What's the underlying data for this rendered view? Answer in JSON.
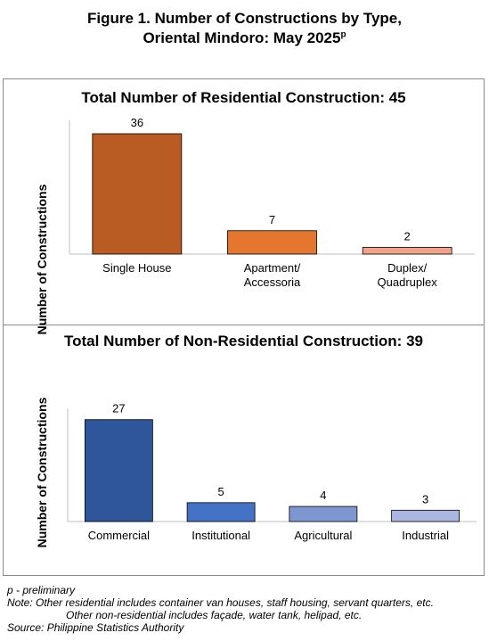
{
  "figure": {
    "title_line1": "Figure 1. Number of Constructions by Type,",
    "title_line2": "Oriental Mindoro: May 2025",
    "title_sup": "p"
  },
  "chart_data": [
    {
      "type": "bar",
      "title": "Total Number of Residential Construction: 45",
      "ylabel": "Number of Constructions",
      "xlabel": "",
      "categories": [
        "Single House",
        "Apartment/\nAccessoria",
        "Duplex/\nQuadruplex"
      ],
      "values": [
        36,
        7,
        2
      ],
      "colors": [
        "#b85c24",
        "#e4762e",
        "#f2a38a"
      ],
      "ylim": [
        0,
        40
      ],
      "grid": false
    },
    {
      "type": "bar",
      "title": "Total Number of Non-Residential Construction: 39",
      "ylabel": "Number of Constructions",
      "xlabel": "",
      "categories": [
        "Commercial",
        "Institutional",
        "Agricultural",
        "Industrial"
      ],
      "values": [
        27,
        5,
        4,
        3
      ],
      "colors": [
        "#2f559a",
        "#4472c4",
        "#7e97d3",
        "#aab7e0"
      ],
      "ylim": [
        0,
        30
      ],
      "grid": false
    }
  ],
  "footnotes": {
    "preliminary": "p - preliminary",
    "note1": "Note: Other residential includes container van houses, staff housing, servant quarters, etc.",
    "note2": "Other non-residential includes façade, water tank, helipad, etc.",
    "source": "Source: Philippine Statistics Authority"
  }
}
